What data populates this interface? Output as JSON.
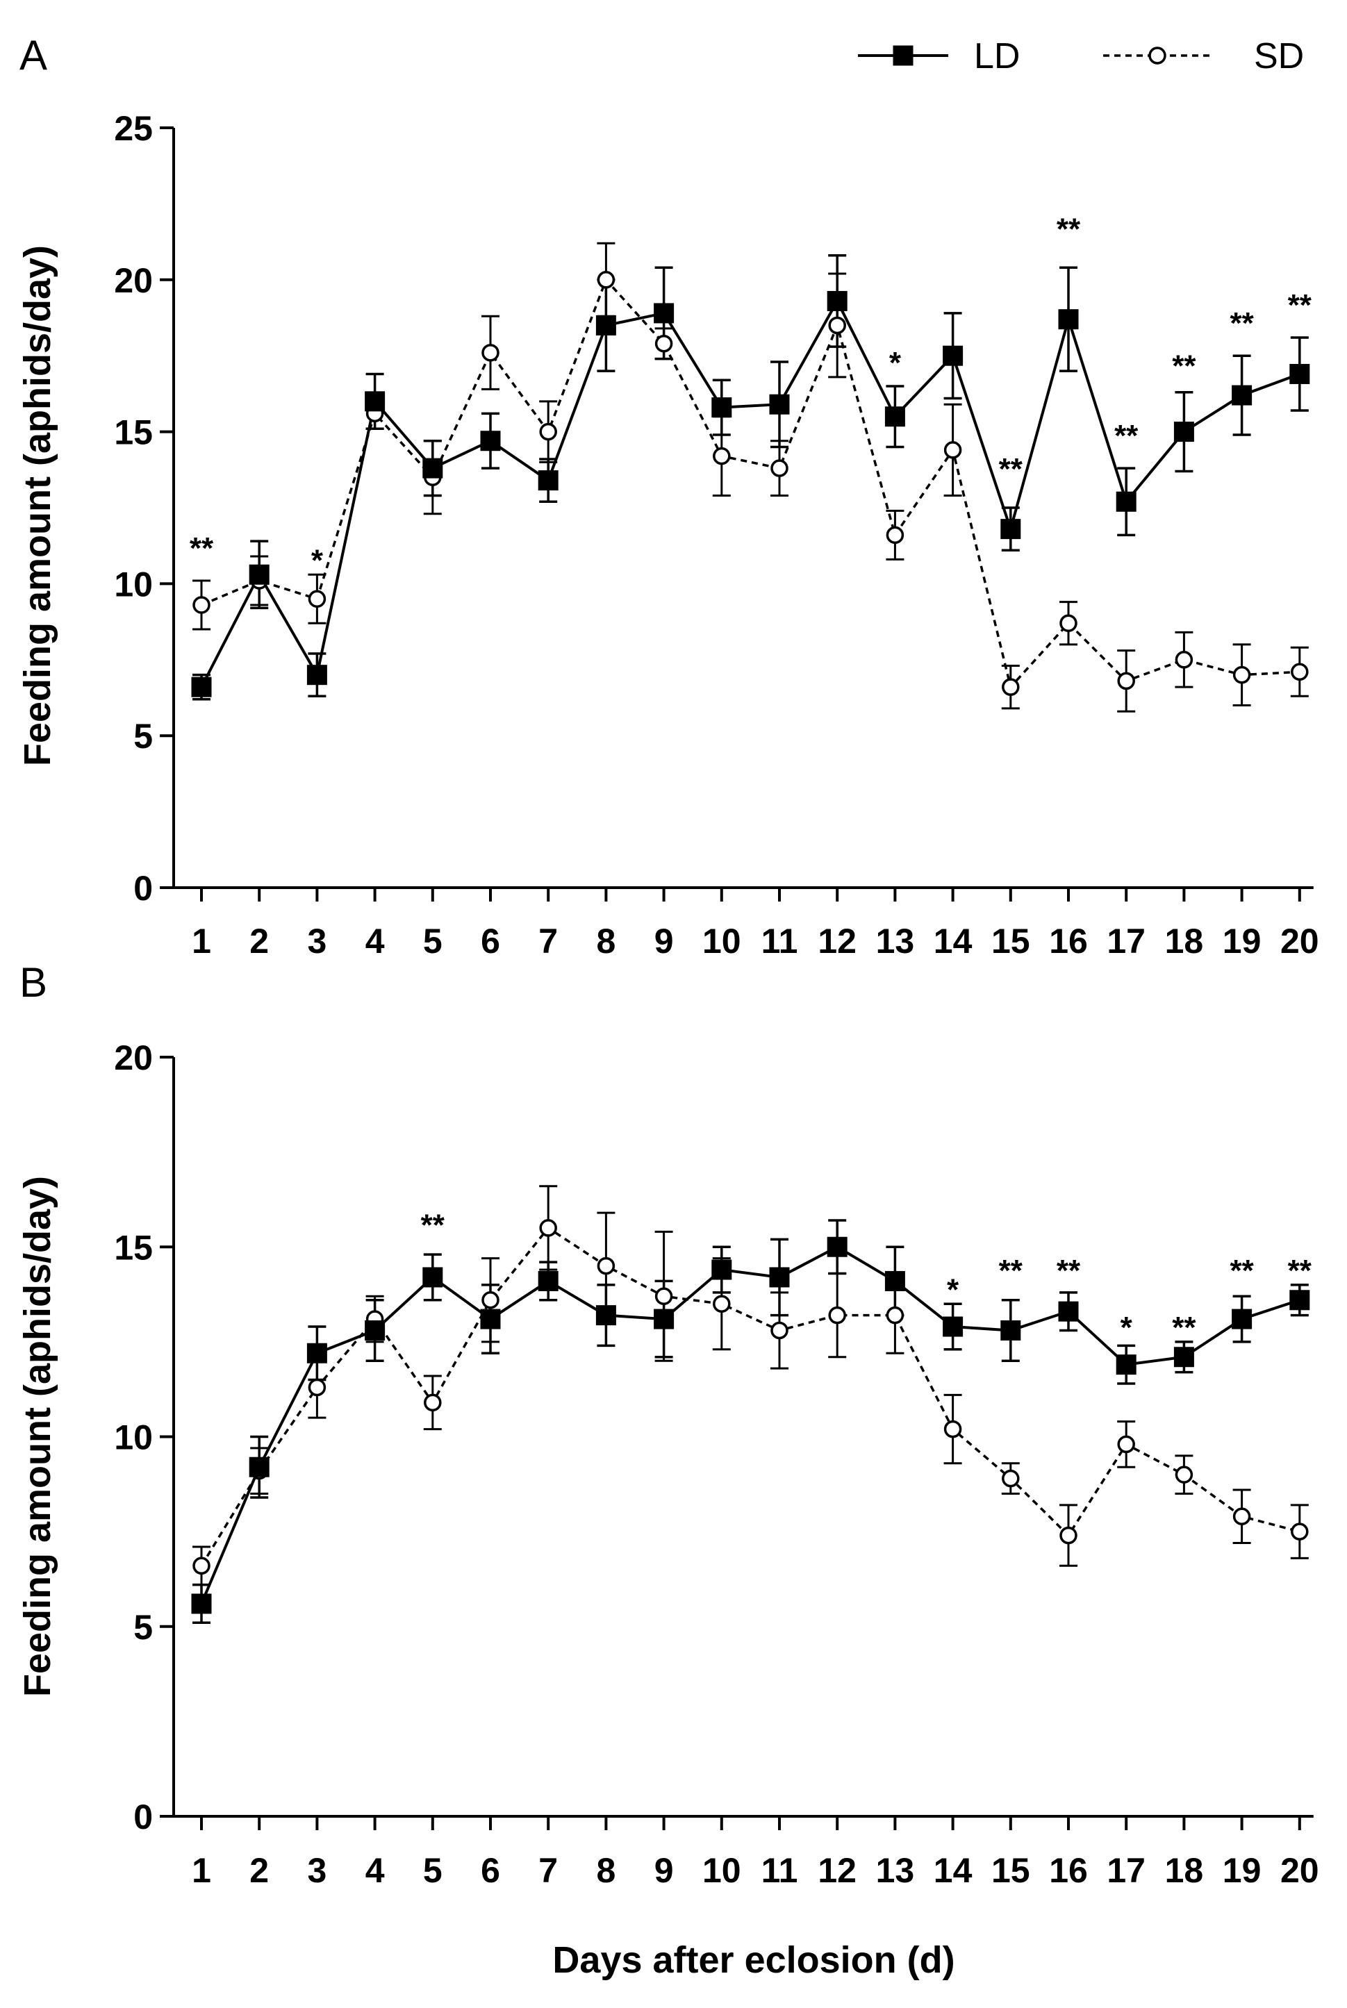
{
  "legend": {
    "ld_label": "LD",
    "sd_label": "SD"
  },
  "xlabel": "Days after eclosion (d)",
  "chart_data": [
    {
      "panel": "A",
      "type": "line",
      "title": "",
      "xlabel": "",
      "ylabel": "Feeding amount  (aphids/day)",
      "x": [
        1,
        2,
        3,
        4,
        5,
        6,
        7,
        8,
        9,
        10,
        11,
        12,
        13,
        14,
        15,
        16,
        17,
        18,
        19,
        20
      ],
      "xticks": [
        "1",
        "2",
        "3",
        "4",
        "5",
        "6",
        "7",
        "8",
        "9",
        "10",
        "11",
        "12",
        "13",
        "14",
        "15",
        "16",
        "17",
        "18",
        "19",
        "20"
      ],
      "ylim": [
        0,
        25
      ],
      "yticks": [
        0,
        5,
        10,
        15,
        20,
        25
      ],
      "series": [
        {
          "name": "LD",
          "values": [
            6.6,
            10.3,
            7.0,
            16.0,
            13.8,
            14.7,
            13.4,
            18.5,
            18.9,
            15.8,
            15.9,
            19.3,
            15.5,
            17.5,
            11.8,
            18.7,
            12.7,
            15.0,
            16.2,
            16.9
          ],
          "errors": [
            0.4,
            1.1,
            0.7,
            0.9,
            0.9,
            0.9,
            0.7,
            1.5,
            1.5,
            0.9,
            1.4,
            1.5,
            1.0,
            1.4,
            0.7,
            1.7,
            1.1,
            1.3,
            1.3,
            1.2
          ]
        },
        {
          "name": "SD",
          "values": [
            9.3,
            10.1,
            9.5,
            15.6,
            13.5,
            17.6,
            15.0,
            20.0,
            17.9,
            14.2,
            13.8,
            18.5,
            11.6,
            14.4,
            6.6,
            8.7,
            6.8,
            7.5,
            7.0,
            7.1
          ],
          "errors": [
            0.8,
            0.8,
            0.8,
            0.5,
            1.2,
            1.2,
            1.0,
            1.2,
            0.5,
            1.3,
            0.9,
            1.7,
            0.8,
            1.5,
            0.7,
            0.7,
            1.0,
            0.9,
            1.0,
            0.8
          ]
        }
      ],
      "annotations": [
        {
          "x": 1,
          "label": "**",
          "y": 11.2
        },
        {
          "x": 3,
          "label": "*",
          "y": 10.8
        },
        {
          "x": 13,
          "label": "*",
          "y": 17.3
        },
        {
          "x": 15,
          "label": "**",
          "y": 13.8
        },
        {
          "x": 16,
          "label": "**",
          "y": 21.7
        },
        {
          "x": 17,
          "label": "**",
          "y": 14.9
        },
        {
          "x": 18,
          "label": "**",
          "y": 17.2
        },
        {
          "x": 19,
          "label": "**",
          "y": 18.6
        },
        {
          "x": 20,
          "label": "**",
          "y": 19.2
        }
      ]
    },
    {
      "panel": "B",
      "type": "line",
      "title": "",
      "xlabel": "Days after eclosion (d)",
      "ylabel": "Feeding amount (aphids/day)",
      "x": [
        1,
        2,
        3,
        4,
        5,
        6,
        7,
        8,
        9,
        10,
        11,
        12,
        13,
        14,
        15,
        16,
        17,
        18,
        19,
        20
      ],
      "xticks": [
        "1",
        "2",
        "3",
        "4",
        "5",
        "6",
        "7",
        "8",
        "9",
        "10",
        "11",
        "12",
        "13",
        "14",
        "15",
        "16",
        "17",
        "18",
        "19",
        "20"
      ],
      "ylim": [
        0,
        20
      ],
      "yticks": [
        0,
        5,
        10,
        15,
        20
      ],
      "series": [
        {
          "name": "LD",
          "values": [
            5.6,
            9.2,
            12.2,
            12.8,
            14.2,
            13.1,
            14.1,
            13.2,
            13.1,
            14.4,
            14.2,
            15.0,
            14.1,
            12.9,
            12.8,
            13.3,
            11.9,
            12.1,
            13.1,
            13.6
          ],
          "errors": [
            0.5,
            0.8,
            0.7,
            0.8,
            0.6,
            0.9,
            0.5,
            0.8,
            1.0,
            0.6,
            1.0,
            0.7,
            0.9,
            0.6,
            0.8,
            0.5,
            0.5,
            0.4,
            0.6,
            0.4
          ]
        },
        {
          "name": "SD",
          "values": [
            6.6,
            9.1,
            11.3,
            13.1,
            10.9,
            13.6,
            15.5,
            14.5,
            13.7,
            13.5,
            12.8,
            13.2,
            13.2,
            10.2,
            8.9,
            7.4,
            9.8,
            9.0,
            7.9,
            7.5
          ],
          "errors": [
            0.5,
            0.6,
            0.8,
            0.6,
            0.7,
            1.1,
            1.1,
            1.4,
            1.7,
            1.2,
            1.0,
            1.1,
            1.0,
            0.9,
            0.4,
            0.8,
            0.6,
            0.5,
            0.7,
            0.7
          ]
        }
      ],
      "annotations": [
        {
          "x": 5,
          "label": "**",
          "y": 15.6
        },
        {
          "x": 14,
          "label": "*",
          "y": 13.9
        },
        {
          "x": 15,
          "label": "**",
          "y": 14.4
        },
        {
          "x": 16,
          "label": "**",
          "y": 14.4
        },
        {
          "x": 17,
          "label": "*",
          "y": 12.9
        },
        {
          "x": 18,
          "label": "**",
          "y": 12.9
        },
        {
          "x": 19,
          "label": "**",
          "y": 14.4
        },
        {
          "x": 20,
          "label": "**",
          "y": 14.4
        }
      ]
    }
  ]
}
